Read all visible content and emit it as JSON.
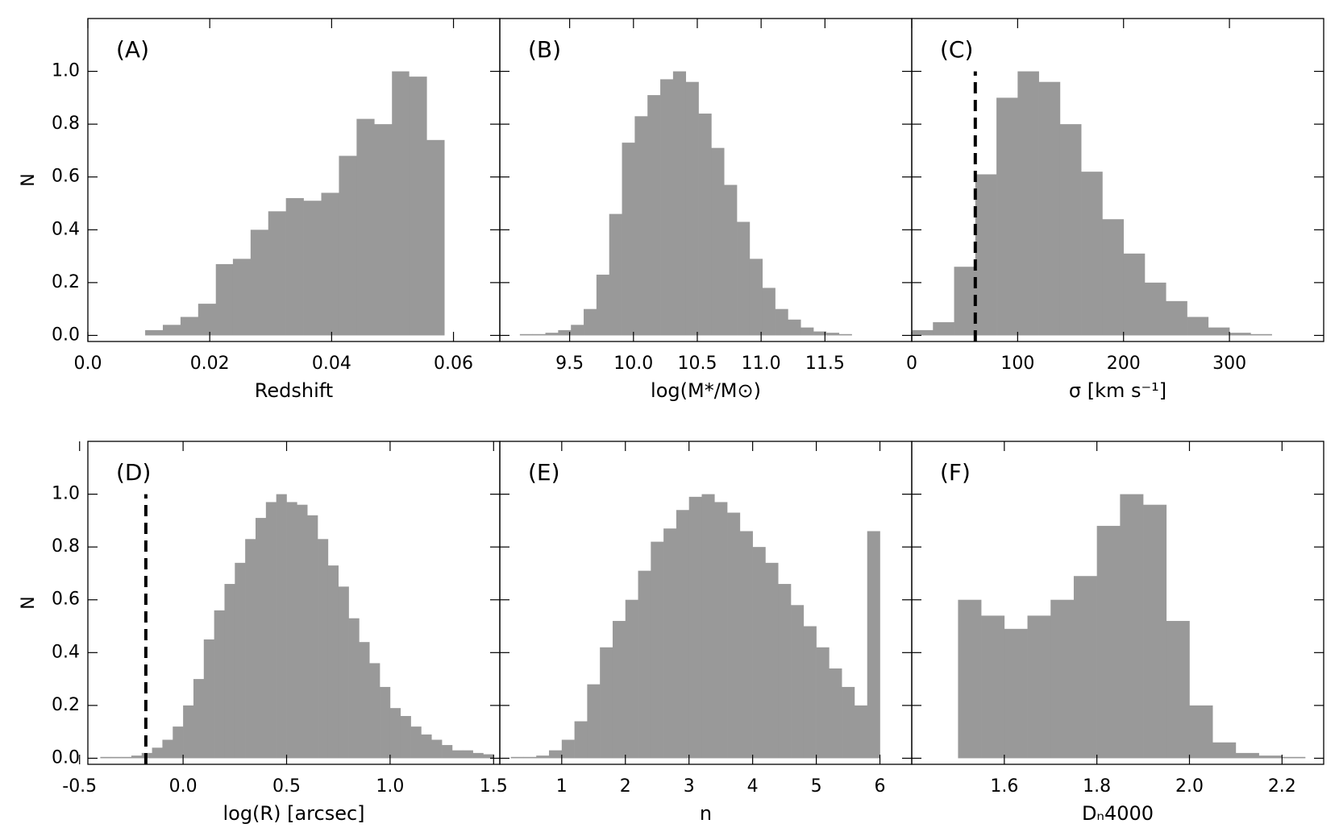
{
  "chart_data": [
    {
      "type": "histogram",
      "label": "(A)",
      "xlabel": "Redshift",
      "ylabel": "N",
      "color": "#999999",
      "bins": [
        0.0094,
        0.0123,
        0.0152,
        0.0181,
        0.021,
        0.0238,
        0.0267,
        0.0296,
        0.0325,
        0.0354,
        0.0383,
        0.0412,
        0.0441,
        0.047,
        0.0499,
        0.0527,
        0.0556,
        0.0585
      ],
      "values": [
        0.02,
        0.04,
        0.07,
        0.12,
        0.27,
        0.29,
        0.4,
        0.47,
        0.52,
        0.51,
        0.54,
        0.68,
        0.82,
        0.8,
        1.0,
        0.98,
        0.74
      ],
      "xlim": [
        0,
        0.0676
      ],
      "xticks": [
        {
          "value": 0,
          "label": "0.0"
        },
        0.02,
        0.04,
        0.06
      ],
      "ylim": [
        -0.023,
        1.2
      ],
      "yticks": [
        {
          "value": 0,
          "label": "0.0"
        },
        0.2,
        0.4,
        0.6,
        0.8,
        {
          "value": 1,
          "label": "1.0"
        }
      ]
    },
    {
      "type": "histogram",
      "label": "(B)",
      "xlabel": "log(M*/M⊙)",
      "color": "#999999",
      "bins": [
        9.11,
        9.21,
        9.31,
        9.41,
        9.51,
        9.61,
        9.71,
        9.81,
        9.91,
        10.01,
        10.11,
        10.21,
        10.31,
        10.41,
        10.51,
        10.61,
        10.71,
        10.81,
        10.91,
        11.01,
        11.11,
        11.21,
        11.31,
        11.41,
        11.51,
        11.61,
        11.71
      ],
      "values": [
        0.005,
        0.005,
        0.01,
        0.02,
        0.04,
        0.1,
        0.23,
        0.46,
        0.73,
        0.83,
        0.91,
        0.97,
        1.0,
        0.96,
        0.84,
        0.71,
        0.57,
        0.43,
        0.29,
        0.18,
        0.1,
        0.06,
        0.03,
        0.015,
        0.01,
        0.005
      ],
      "xlim": [
        8.953,
        12.18
      ],
      "xticks": [
        9.5,
        {
          "value": 10,
          "label": "10.0"
        },
        10.5,
        {
          "value": 11,
          "label": "11.0"
        },
        11.5
      ],
      "ylim": [
        -0.023,
        1.2
      ]
    },
    {
      "type": "histogram",
      "label": "(C)",
      "xlabel": "σ [km s⁻¹]",
      "color": "#999999",
      "bins": [
        0,
        20,
        40,
        60,
        80,
        100,
        120,
        140,
        160,
        180,
        200,
        220,
        240,
        260,
        280,
        300,
        320,
        340
      ],
      "values": [
        0.02,
        0.05,
        0.26,
        0.61,
        0.9,
        1.0,
        0.96,
        0.8,
        0.62,
        0.44,
        0.31,
        0.2,
        0.13,
        0.07,
        0.03,
        0.01,
        0.005
      ],
      "xlim": [
        0,
        389
      ],
      "xticks": [
        0,
        100,
        200,
        300
      ],
      "ylim": [
        -0.023,
        1.2
      ],
      "vline": {
        "x": 60,
        "ymax": 1.0
      }
    },
    {
      "type": "histogram",
      "label": "(D)",
      "xlabel": "log(R) [arcsec]",
      "ylabel": "N",
      "color": "#999999",
      "bins": [
        -0.4,
        -0.35,
        -0.3,
        -0.25,
        -0.2,
        -0.15,
        -0.1,
        -0.05,
        0,
        0.05,
        0.1,
        0.15,
        0.2,
        0.25,
        0.3,
        0.35,
        0.4,
        0.45,
        0.5,
        0.55,
        0.6,
        0.65,
        0.7,
        0.75,
        0.8,
        0.85,
        0.9,
        0.95,
        1.0,
        1.05,
        1.1,
        1.15,
        1.2,
        1.25,
        1.3,
        1.35,
        1.4,
        1.45,
        1.5
      ],
      "values": [
        0.005,
        0.005,
        0.005,
        0.01,
        0.02,
        0.04,
        0.07,
        0.12,
        0.2,
        0.3,
        0.45,
        0.56,
        0.66,
        0.74,
        0.83,
        0.91,
        0.97,
        1.0,
        0.97,
        0.96,
        0.92,
        0.83,
        0.73,
        0.65,
        0.53,
        0.44,
        0.36,
        0.27,
        0.19,
        0.16,
        0.12,
        0.09,
        0.07,
        0.05,
        0.03,
        0.03,
        0.02,
        0.015
      ],
      "xlim": [
        -0.46,
        1.53
      ],
      "xticks": [
        -0.5,
        {
          "value": 0,
          "label": "0.0"
        },
        0.5,
        {
          "value": 1,
          "label": "1.0"
        },
        1.5
      ],
      "ylim": [
        -0.023,
        1.2
      ],
      "yticks": [
        {
          "value": 0,
          "label": "0.0"
        },
        0.2,
        0.4,
        0.6,
        0.8,
        {
          "value": 1,
          "label": "1.0"
        }
      ],
      "vline": {
        "x": -0.18,
        "ymax": 1.0
      }
    },
    {
      "type": "histogram",
      "label": "(E)",
      "xlabel": "n",
      "color": "#999999",
      "bins": [
        0.2,
        0.4,
        0.6,
        0.8,
        1.0,
        1.2,
        1.4,
        1.6,
        1.8,
        2.0,
        2.2,
        2.4,
        2.6,
        2.8,
        3.0,
        3.2,
        3.4,
        3.6,
        3.8,
        4.0,
        4.2,
        4.4,
        4.6,
        4.8,
        5.0,
        5.2,
        5.4,
        5.6,
        5.8,
        6.0
      ],
      "values": [
        0.005,
        0.005,
        0.01,
        0.03,
        0.07,
        0.14,
        0.28,
        0.42,
        0.52,
        0.6,
        0.71,
        0.82,
        0.87,
        0.94,
        0.99,
        1.0,
        0.97,
        0.93,
        0.86,
        0.8,
        0.74,
        0.66,
        0.58,
        0.5,
        0.42,
        0.34,
        0.27,
        0.2,
        0.86
      ],
      "xlim": [
        0.027,
        6.5
      ],
      "xticks": [
        1,
        2,
        3,
        4,
        5,
        6
      ],
      "ylim": [
        -0.023,
        1.2
      ]
    },
    {
      "type": "histogram",
      "label": "(F)",
      "xlabel": "Dₙ4000",
      "color": "#999999",
      "bins": [
        1.5,
        1.55,
        1.6,
        1.65,
        1.7,
        1.75,
        1.8,
        1.85,
        1.9,
        1.95,
        2.0,
        2.05,
        2.1,
        2.15,
        2.2,
        2.25
      ],
      "values": [
        0.6,
        0.54,
        0.49,
        0.54,
        0.6,
        0.69,
        0.88,
        1.0,
        0.96,
        0.52,
        0.2,
        0.06,
        0.02,
        0.01,
        0.005
      ],
      "xlim": [
        1.4,
        2.29
      ],
      "xticks": [
        1.6,
        1.8,
        {
          "value": 2,
          "label": "2.0"
        },
        2.2
      ],
      "ylim": [
        -0.023,
        1.2
      ]
    }
  ]
}
